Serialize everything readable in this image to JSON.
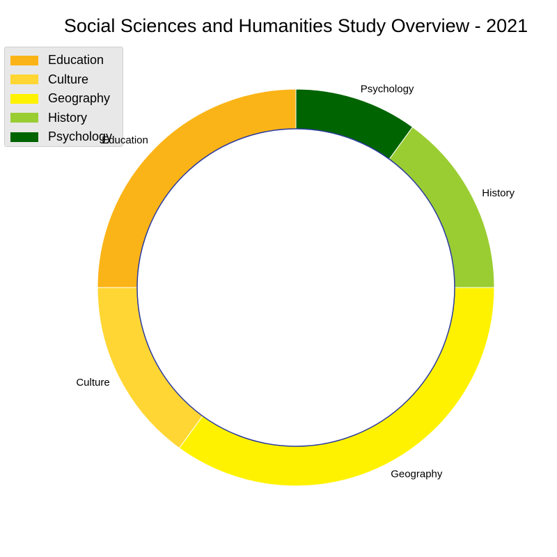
{
  "chart_data": {
    "type": "pie",
    "subtype": "donut",
    "title": "Social Sciences and Humanities Study Overview - 2021",
    "categories": [
      "Education",
      "Culture",
      "Geography",
      "History",
      "Psychology"
    ],
    "values": [
      25,
      15,
      35,
      15,
      10
    ],
    "colors": [
      "#FBB417",
      "#FFD633",
      "#FFF200",
      "#9ACD32",
      "#006400"
    ],
    "center_circle_stroke": "#2B3A9E",
    "legend_placement": "top-left",
    "start_angle_deg": 90,
    "direction": "counterclockwise"
  }
}
